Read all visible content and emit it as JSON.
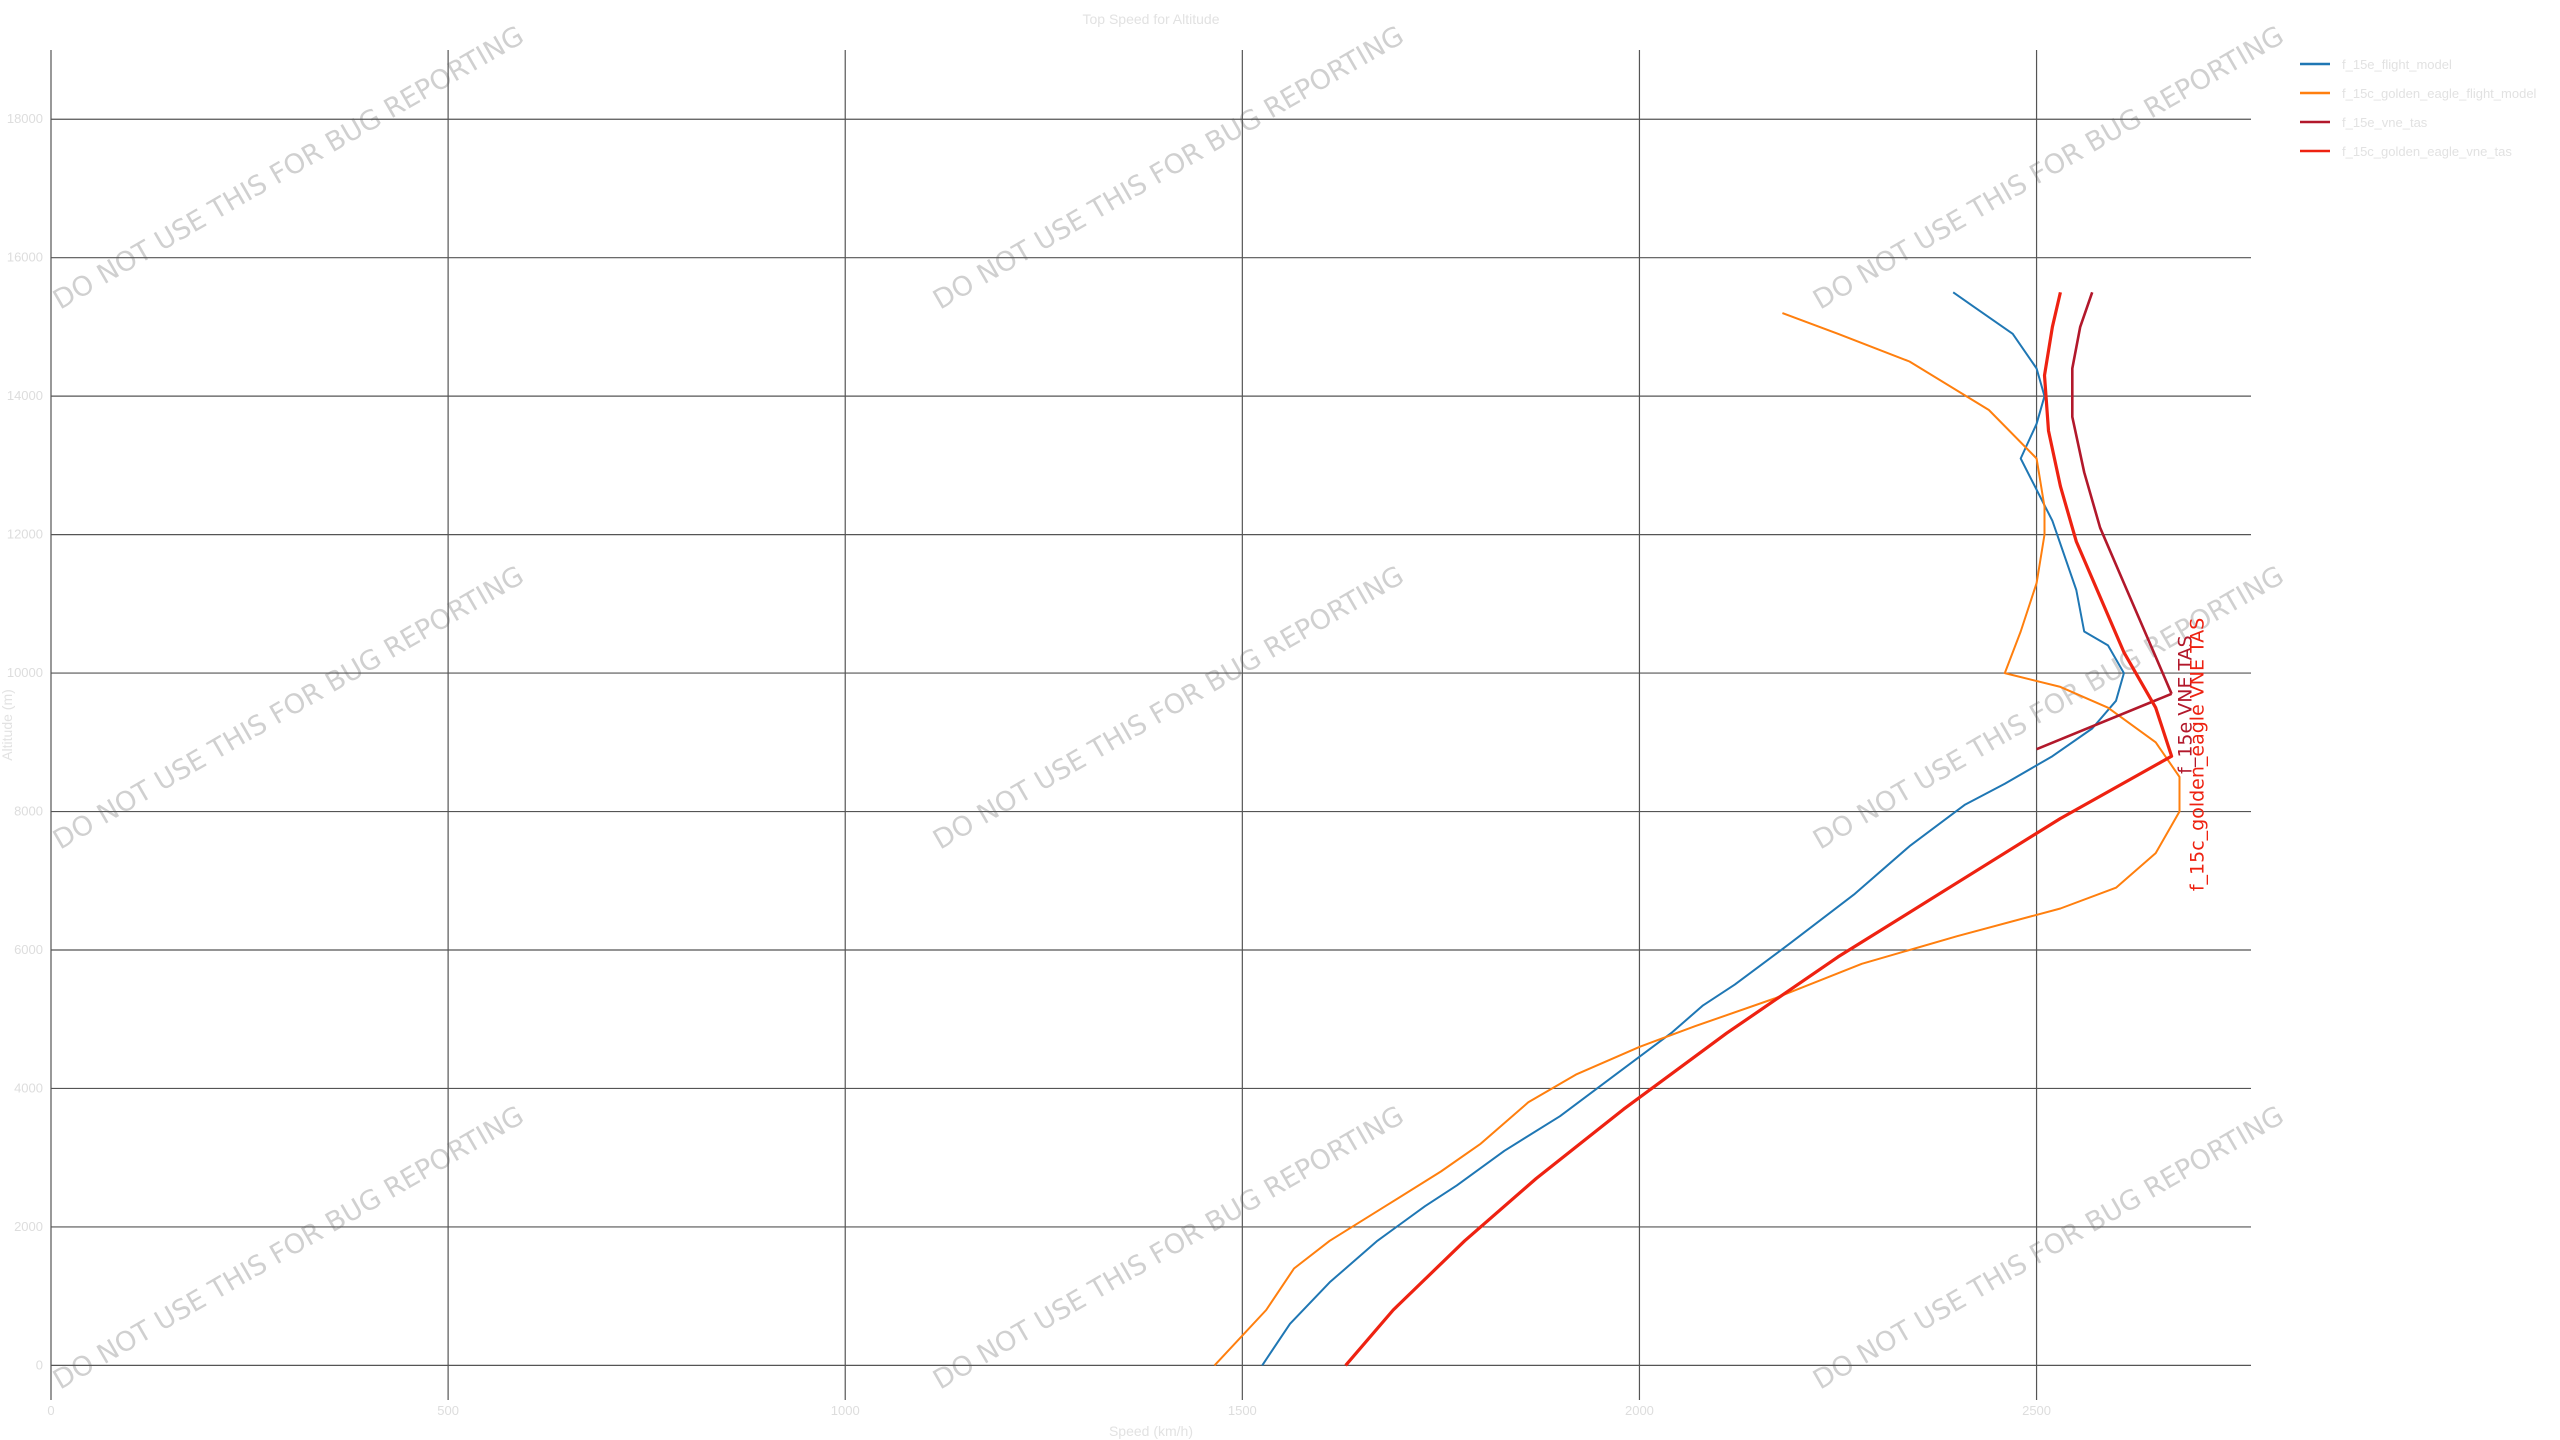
{
  "chart_data": {
    "type": "line",
    "title": "Top Speed for Altitude",
    "xlabel": "Speed (km/h)",
    "ylabel": "Altitude (m)",
    "xlim": [
      0,
      2770
    ],
    "ylim": [
      -500,
      19000
    ],
    "x_ticks": [
      0,
      500,
      1000,
      1500,
      2000,
      2500
    ],
    "y_ticks": [
      0,
      2000,
      4000,
      6000,
      8000,
      10000,
      12000,
      14000,
      16000,
      18000
    ],
    "watermark": "DO NOT USE THIS FOR BUG REPORTING",
    "legend_position": "top-right",
    "series": [
      {
        "name": "f_15e_flight_model",
        "color": "#1f77b4",
        "width": 2,
        "points": [
          [
            1525,
            0
          ],
          [
            1560,
            600
          ],
          [
            1610,
            1200
          ],
          [
            1670,
            1800
          ],
          [
            1730,
            2300
          ],
          [
            1770,
            2600
          ],
          [
            1830,
            3100
          ],
          [
            1900,
            3600
          ],
          [
            1970,
            4200
          ],
          [
            2040,
            4800
          ],
          [
            2080,
            5200
          ],
          [
            2120,
            5500
          ],
          [
            2190,
            6100
          ],
          [
            2270,
            6800
          ],
          [
            2340,
            7500
          ],
          [
            2410,
            8100
          ],
          [
            2460,
            8400
          ],
          [
            2520,
            8800
          ],
          [
            2570,
            9200
          ],
          [
            2600,
            9600
          ],
          [
            2610,
            10000
          ],
          [
            2590,
            10400
          ],
          [
            2560,
            10600
          ],
          [
            2550,
            11200
          ],
          [
            2520,
            12200
          ],
          [
            2480,
            13100
          ],
          [
            2500,
            13600
          ],
          [
            2510,
            14000
          ],
          [
            2500,
            14400
          ],
          [
            2470,
            14900
          ],
          [
            2420,
            15300
          ],
          [
            2395,
            15500
          ]
        ],
        "label": "f_15e_flight_model"
      },
      {
        "name": "f_15c_golden_eagle_flight_model",
        "color": "#ff7f0e",
        "width": 2,
        "points": [
          [
            1465,
            0
          ],
          [
            1530,
            800
          ],
          [
            1565,
            1400
          ],
          [
            1610,
            1800
          ],
          [
            1680,
            2300
          ],
          [
            1750,
            2800
          ],
          [
            1800,
            3200
          ],
          [
            1860,
            3800
          ],
          [
            1920,
            4200
          ],
          [
            2000,
            4600
          ],
          [
            2070,
            4900
          ],
          [
            2170,
            5300
          ],
          [
            2280,
            5800
          ],
          [
            2400,
            6200
          ],
          [
            2530,
            6600
          ],
          [
            2600,
            6900
          ],
          [
            2650,
            7400
          ],
          [
            2680,
            8000
          ],
          [
            2680,
            8500
          ],
          [
            2650,
            9000
          ],
          [
            2590,
            9500
          ],
          [
            2530,
            9800
          ],
          [
            2460,
            10000
          ],
          [
            2480,
            10600
          ],
          [
            2500,
            11300
          ],
          [
            2510,
            12000
          ],
          [
            2510,
            12400
          ],
          [
            2500,
            13100
          ],
          [
            2440,
            13800
          ],
          [
            2340,
            14500
          ],
          [
            2250,
            14900
          ],
          [
            2180,
            15200
          ]
        ],
        "label": "f_15c_golden_eagle_flight_model"
      },
      {
        "name": "f_15e_vne_tas",
        "color": "#b2182b",
        "width": 2.6,
        "points": [
          [
            2670,
            9700
          ],
          [
            2640,
            10500
          ],
          [
            2610,
            11300
          ],
          [
            2580,
            12100
          ],
          [
            2560,
            12900
          ],
          [
            2545,
            13700
          ],
          [
            2545,
            14400
          ],
          [
            2555,
            15000
          ],
          [
            2570,
            15500
          ]
        ],
        "tail": [
          [
            2670,
            9700
          ],
          [
            2500,
            8900
          ]
        ],
        "label": "f_15e VNE TAS"
      },
      {
        "name": "f_15c_golden_eagle_vne_tas",
        "color": "#ee2211",
        "width": 3.2,
        "points": [
          [
            1630,
            0
          ],
          [
            1690,
            800
          ],
          [
            1780,
            1800
          ],
          [
            1870,
            2700
          ],
          [
            1980,
            3700
          ],
          [
            2110,
            4800
          ],
          [
            2250,
            5900
          ],
          [
            2390,
            6900
          ],
          [
            2530,
            7900
          ],
          [
            2670,
            8800
          ],
          [
            2650,
            9500
          ],
          [
            2610,
            10300
          ],
          [
            2580,
            11100
          ],
          [
            2550,
            11900
          ],
          [
            2530,
            12700
          ],
          [
            2515,
            13500
          ],
          [
            2510,
            14300
          ],
          [
            2520,
            15000
          ],
          [
            2530,
            15500
          ]
        ],
        "label": "f_15c_golden_eagle VNE TAS"
      }
    ]
  }
}
